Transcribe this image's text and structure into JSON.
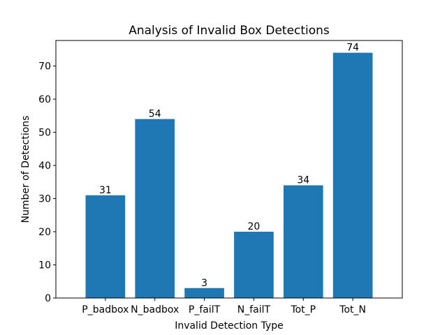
{
  "chart_data": {
    "type": "bar",
    "title": "Analysis of Invalid Box Detections",
    "xlabel": "Invalid Detection Type",
    "ylabel": "Number of Detections",
    "categories": [
      "P_badbox",
      "N_badbox",
      "P_failT",
      "N_failT",
      "Tot_P",
      "Tot_N"
    ],
    "values": [
      31,
      54,
      3,
      20,
      34,
      74
    ],
    "ylim": [
      0,
      77.7
    ],
    "yticks": [
      0,
      10,
      20,
      30,
      40,
      50,
      60,
      70
    ],
    "bar_color": "#1f77b4",
    "grid": false,
    "legend": "none"
  }
}
